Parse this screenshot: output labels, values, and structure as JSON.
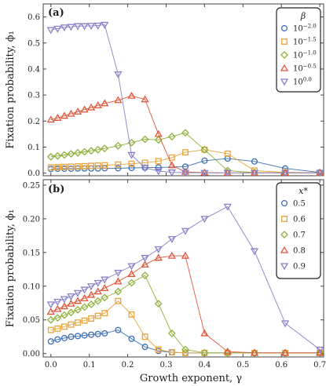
{
  "chart_data": [
    {
      "panel_label": "(a)",
      "type": "line",
      "xlabel": "Growth exponent, γ",
      "ylabel": "Fixation probability, ϕ₁",
      "xlim": [
        -0.02,
        0.71
      ],
      "ylim": [
        -0.01,
        0.65
      ],
      "xticks": [
        0.0,
        0.1,
        0.2,
        0.3,
        0.4,
        0.5,
        0.6,
        0.7
      ],
      "xtick_labels": [
        "0.0",
        "0.1",
        "0.2",
        "0.3",
        "0.4",
        "0.5",
        "0.6",
        "0.7"
      ],
      "yticks": [
        0.0,
        0.1,
        0.2,
        0.3,
        0.4,
        0.5,
        0.6
      ],
      "ytick_labels": [
        "0.0",
        "0.1",
        "0.2",
        "0.3",
        "0.4",
        "0.5",
        "0.6"
      ],
      "legend_title": "β",
      "legend_position": "top-right",
      "series": [
        {
          "name": "10",
          "exp": "−2.0",
          "color": "#3b6eb5",
          "marker": "circle",
          "x": [
            0.0,
            0.0175,
            0.035,
            0.0525,
            0.07,
            0.0875,
            0.105,
            0.1225,
            0.14,
            0.175,
            0.21,
            0.245,
            0.28,
            0.35,
            0.4,
            0.46,
            0.53,
            0.61,
            0.7
          ],
          "y": [
            0.016,
            0.017,
            0.017,
            0.017,
            0.018,
            0.018,
            0.018,
            0.018,
            0.019,
            0.019,
            0.02,
            0.021,
            0.022,
            0.025,
            0.048,
            0.056,
            0.045,
            0.018,
            0.003
          ]
        },
        {
          "name": "10",
          "exp": "−1.5",
          "color": "#e8a33a",
          "marker": "square",
          "x": [
            0.0,
            0.0175,
            0.035,
            0.0525,
            0.07,
            0.0875,
            0.105,
            0.1225,
            0.14,
            0.175,
            0.21,
            0.245,
            0.28,
            0.315,
            0.35,
            0.4,
            0.46,
            0.53,
            0.61,
            0.7
          ],
          "y": [
            0.022,
            0.023,
            0.024,
            0.025,
            0.026,
            0.027,
            0.028,
            0.029,
            0.03,
            0.033,
            0.036,
            0.04,
            0.046,
            0.06,
            0.08,
            0.09,
            0.075,
            0.01,
            0.003,
            0.001
          ]
        },
        {
          "name": "10",
          "exp": "−1.0",
          "color": "#8db13a",
          "marker": "diamond",
          "x": [
            0.0,
            0.0175,
            0.035,
            0.0525,
            0.07,
            0.0875,
            0.105,
            0.1225,
            0.14,
            0.175,
            0.21,
            0.245,
            0.28,
            0.315,
            0.35,
            0.4,
            0.46,
            0.53,
            0.61,
            0.7
          ],
          "y": [
            0.063,
            0.066,
            0.07,
            0.074,
            0.078,
            0.082,
            0.086,
            0.09,
            0.095,
            0.105,
            0.117,
            0.13,
            0.128,
            0.14,
            0.155,
            0.09,
            0.01,
            0.002,
            0.001,
            0.001
          ]
        },
        {
          "name": "10",
          "exp": "−0.5",
          "color": "#e0563a",
          "marker": "triangle-up",
          "x": [
            0.0,
            0.0175,
            0.035,
            0.0525,
            0.07,
            0.0875,
            0.105,
            0.1225,
            0.14,
            0.175,
            0.21,
            0.245,
            0.28,
            0.315,
            0.35,
            0.4,
            0.46,
            0.53,
            0.61,
            0.7
          ],
          "y": [
            0.205,
            0.212,
            0.22,
            0.228,
            0.236,
            0.244,
            0.252,
            0.26,
            0.268,
            0.28,
            0.297,
            0.283,
            0.15,
            0.03,
            0.005,
            0.002,
            0.001,
            0.001,
            0.001,
            0.001
          ]
        },
        {
          "name": "10",
          "exp": "0.0",
          "color": "#8a82c8",
          "marker": "triangle-down",
          "x": [
            0.0,
            0.0175,
            0.035,
            0.0525,
            0.07,
            0.0875,
            0.105,
            0.1225,
            0.14,
            0.175,
            0.21,
            0.245,
            0.28,
            0.315,
            0.35,
            0.4,
            0.46,
            0.53,
            0.61,
            0.7
          ],
          "y": [
            0.55,
            0.555,
            0.56,
            0.562,
            0.565,
            0.565,
            0.566,
            0.567,
            0.57,
            0.38,
            0.07,
            0.02,
            0.008,
            0.003,
            0.002,
            0.001,
            0.001,
            0.001,
            0.001,
            0.001
          ]
        }
      ]
    },
    {
      "panel_label": "(b)",
      "type": "line",
      "xlabel": "Growth exponent, γ",
      "ylabel": "Fixation probability, ϕ₁",
      "xlim": [
        -0.02,
        0.71
      ],
      "ylim": [
        -0.005,
        0.258
      ],
      "xticks": [
        0.0,
        0.1,
        0.2,
        0.3,
        0.4,
        0.5,
        0.6,
        0.7
      ],
      "xtick_labels": [
        "0.0",
        "0.1",
        "0.2",
        "0.3",
        "0.4",
        "0.5",
        "0.6",
        "0.7"
      ],
      "yticks": [
        0.0,
        0.05,
        0.1,
        0.15,
        0.2,
        0.25
      ],
      "ytick_labels": [
        "0.00",
        "0.05",
        "0.10",
        "0.15",
        "0.20",
        "0.25"
      ],
      "legend_title": "x*",
      "legend_position": "top-right",
      "series": [
        {
          "name": "0.5",
          "color": "#3b6eb5",
          "marker": "circle",
          "x": [
            0.0,
            0.0175,
            0.035,
            0.0525,
            0.07,
            0.0875,
            0.105,
            0.1225,
            0.14,
            0.175,
            0.21,
            0.245,
            0.28,
            0.315,
            0.35,
            0.4,
            0.46,
            0.53,
            0.61,
            0.7
          ],
          "y": [
            0.018,
            0.021,
            0.023,
            0.025,
            0.026,
            0.027,
            0.028,
            0.029,
            0.03,
            0.035,
            0.022,
            0.01,
            0.004,
            0.002,
            0.001,
            0.001,
            0.001,
            0.001,
            0.001,
            0.001
          ]
        },
        {
          "name": "0.6",
          "color": "#e8a33a",
          "marker": "square",
          "x": [
            0.0,
            0.0175,
            0.035,
            0.0525,
            0.07,
            0.0875,
            0.105,
            0.1225,
            0.14,
            0.175,
            0.21,
            0.245,
            0.28,
            0.315,
            0.35,
            0.4,
            0.46,
            0.53,
            0.61,
            0.7
          ],
          "y": [
            0.035,
            0.037,
            0.04,
            0.043,
            0.046,
            0.049,
            0.052,
            0.056,
            0.06,
            0.078,
            0.058,
            0.025,
            0.006,
            0.002,
            0.001,
            0.001,
            0.001,
            0.001,
            0.001,
            0.001
          ]
        },
        {
          "name": "0.7",
          "color": "#8db13a",
          "marker": "diamond",
          "x": [
            0.0,
            0.0175,
            0.035,
            0.0525,
            0.07,
            0.0875,
            0.105,
            0.1225,
            0.14,
            0.175,
            0.21,
            0.245,
            0.28,
            0.315,
            0.35,
            0.4,
            0.46,
            0.53,
            0.61,
            0.7
          ],
          "y": [
            0.05,
            0.053,
            0.057,
            0.061,
            0.065,
            0.069,
            0.073,
            0.078,
            0.083,
            0.092,
            0.105,
            0.116,
            0.074,
            0.03,
            0.006,
            0.001,
            0.001,
            0.001,
            0.001,
            0.001
          ]
        },
        {
          "name": "0.8",
          "color": "#e0563a",
          "marker": "triangle-up",
          "x": [
            0.0,
            0.0175,
            0.035,
            0.0525,
            0.07,
            0.0875,
            0.105,
            0.1225,
            0.14,
            0.175,
            0.21,
            0.245,
            0.28,
            0.315,
            0.35,
            0.4,
            0.46,
            0.53,
            0.61,
            0.7
          ],
          "y": [
            0.062,
            0.066,
            0.07,
            0.074,
            0.078,
            0.082,
            0.087,
            0.092,
            0.097,
            0.107,
            0.118,
            0.132,
            0.142,
            0.145,
            0.145,
            0.03,
            0.003,
            0.001,
            0.001,
            0.001
          ]
        },
        {
          "name": "0.9",
          "color": "#8a82c8",
          "marker": "triangle-down",
          "x": [
            0.0,
            0.0175,
            0.035,
            0.0525,
            0.07,
            0.0875,
            0.105,
            0.1225,
            0.14,
            0.175,
            0.21,
            0.245,
            0.28,
            0.315,
            0.35,
            0.4,
            0.46,
            0.53,
            0.61,
            0.7
          ],
          "y": [
            0.073,
            0.077,
            0.081,
            0.085,
            0.09,
            0.095,
            0.1,
            0.105,
            0.11,
            0.12,
            0.13,
            0.142,
            0.155,
            0.17,
            0.182,
            0.2,
            0.218,
            0.152,
            0.045,
            0.006
          ]
        }
      ]
    }
  ]
}
